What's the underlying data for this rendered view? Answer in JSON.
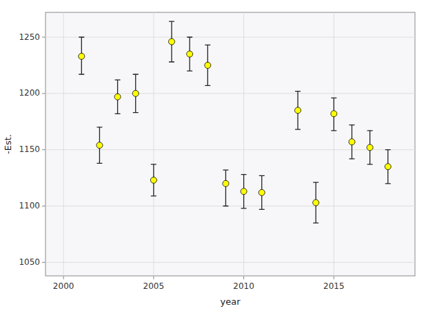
{
  "chart_data": {
    "type": "scatter",
    "xlabel": "year",
    "ylabel": "-Est.",
    "x": [
      2001,
      2002,
      2003,
      2004,
      2005,
      2006,
      2007,
      2008,
      2009,
      2010,
      2011,
      2013,
      2014,
      2015,
      2016,
      2017,
      2018
    ],
    "values": [
      1233,
      1154,
      1197,
      1200,
      1123,
      1246,
      1235,
      1225,
      1120,
      1113,
      1112,
      1185,
      1103,
      1182,
      1157,
      1152,
      1135
    ],
    "ymin": [
      1217,
      1138,
      1182,
      1183,
      1109,
      1228,
      1220,
      1207,
      1100,
      1098,
      1097,
      1168,
      1085,
      1167,
      1142,
      1137,
      1120
    ],
    "ymax": [
      1250,
      1170,
      1212,
      1217,
      1137,
      1264,
      1250,
      1243,
      1132,
      1128,
      1127,
      1202,
      1121,
      1196,
      1172,
      1167,
      1150
    ],
    "color": "#FFFF00",
    "marker": "circle",
    "xlim": [
      1999.0,
      2019.5
    ],
    "ylim": [
      1038,
      1272
    ],
    "xticks": [
      2000,
      2005,
      2010,
      2015
    ],
    "yticks": [
      1050,
      1100,
      1150,
      1200,
      1250
    ],
    "grid": true
  }
}
